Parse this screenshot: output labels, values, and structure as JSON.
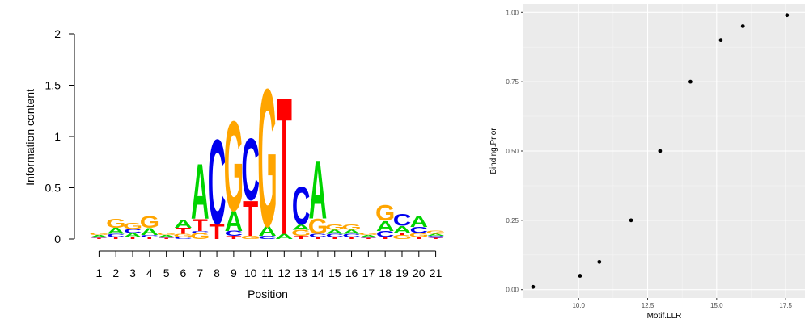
{
  "chart_data": [
    {
      "type": "sequence-logo",
      "xlabel": "Position",
      "ylabel": "Information content",
      "ylim": [
        0,
        2
      ],
      "yticks": [
        "0",
        "0.5",
        "1",
        "1.5",
        "2"
      ],
      "positions": [
        "1",
        "2",
        "3",
        "4",
        "5",
        "6",
        "7",
        "8",
        "9",
        "10",
        "11",
        "12",
        "13",
        "14",
        "15",
        "16",
        "17",
        "18",
        "19",
        "20",
        "21"
      ],
      "colors": {
        "A": "#00d400",
        "C": "#0000ee",
        "G": "#ffa500",
        "T": "#ff0000"
      },
      "stacks": [
        [
          [
            "T",
            0.01
          ],
          [
            "C",
            0.01
          ],
          [
            "A",
            0.02
          ],
          [
            "G",
            0.02
          ]
        ],
        [
          [
            "T",
            0.02
          ],
          [
            "C",
            0.03
          ],
          [
            "A",
            0.06
          ],
          [
            "G",
            0.09
          ]
        ],
        [
          [
            "T",
            0.02
          ],
          [
            "A",
            0.04
          ],
          [
            "C",
            0.04
          ],
          [
            "G",
            0.06
          ]
        ],
        [
          [
            "T",
            0.02
          ],
          [
            "C",
            0.02
          ],
          [
            "A",
            0.07
          ],
          [
            "G",
            0.12
          ]
        ],
        [
          [
            "T",
            0.01
          ],
          [
            "C",
            0.01
          ],
          [
            "A",
            0.02
          ],
          [
            "G",
            0.02
          ]
        ],
        [
          [
            "C",
            0.02
          ],
          [
            "G",
            0.03
          ],
          [
            "T",
            0.06
          ],
          [
            "A",
            0.08
          ]
        ],
        [
          [
            "G",
            0.06
          ],
          [
            "C",
            0.02
          ],
          [
            "T",
            0.12
          ],
          [
            "A",
            0.55
          ]
        ],
        [
          [
            "T",
            0.15
          ],
          [
            "C",
            0.85
          ]
        ],
        [
          [
            "T",
            0.03
          ],
          [
            "C",
            0.05
          ],
          [
            "A",
            0.2
          ],
          [
            "G",
            0.9
          ]
        ],
        [
          [
            "G",
            0.03
          ],
          [
            "T",
            0.35
          ],
          [
            "C",
            0.62
          ]
        ],
        [
          [
            "C",
            0.03
          ],
          [
            "A",
            0.1
          ],
          [
            "G",
            1.38
          ]
        ],
        [
          [
            "A",
            0.05
          ],
          [
            "T",
            1.38
          ]
        ],
        [
          [
            "T",
            0.03
          ],
          [
            "G",
            0.06
          ],
          [
            "A",
            0.05
          ],
          [
            "C",
            0.38
          ]
        ],
        [
          [
            "T",
            0.02
          ],
          [
            "C",
            0.03
          ],
          [
            "G",
            0.15
          ],
          [
            "A",
            0.58
          ]
        ],
        [
          [
            "T",
            0.02
          ],
          [
            "C",
            0.03
          ],
          [
            "A",
            0.04
          ],
          [
            "G",
            0.05
          ]
        ],
        [
          [
            "T",
            0.02
          ],
          [
            "C",
            0.03
          ],
          [
            "A",
            0.04
          ],
          [
            "G",
            0.05
          ]
        ],
        [
          [
            "T",
            0.01
          ],
          [
            "C",
            0.01
          ],
          [
            "A",
            0.02
          ],
          [
            "G",
            0.02
          ]
        ],
        [
          [
            "T",
            0.02
          ],
          [
            "C",
            0.06
          ],
          [
            "A",
            0.1
          ],
          [
            "G",
            0.16
          ]
        ],
        [
          [
            "G",
            0.04
          ],
          [
            "T",
            0.02
          ],
          [
            "A",
            0.07
          ],
          [
            "C",
            0.12
          ]
        ],
        [
          [
            "T",
            0.02
          ],
          [
            "G",
            0.04
          ],
          [
            "C",
            0.06
          ],
          [
            "A",
            0.11
          ]
        ],
        [
          [
            "T",
            0.01
          ],
          [
            "C",
            0.02
          ],
          [
            "A",
            0.02
          ],
          [
            "G",
            0.03
          ]
        ]
      ]
    },
    {
      "type": "scatter",
      "xlabel": "Motif.LLR",
      "ylabel": "Binding.Prior",
      "xlim": [
        8.0,
        18.2
      ],
      "ylim": [
        -0.03,
        1.03
      ],
      "xticks": [
        10.0,
        12.5,
        15.0,
        17.5
      ],
      "xtick_labels": [
        "10.0",
        "12.5",
        "15.0",
        "17.5"
      ],
      "yticks": [
        0.0,
        0.25,
        0.5,
        0.75,
        1.0
      ],
      "ytick_labels": [
        "0.00",
        "0.25",
        "0.50",
        "0.75",
        "1.00"
      ],
      "x": [
        8.35,
        10.05,
        10.75,
        11.9,
        12.95,
        14.05,
        15.15,
        15.95,
        17.55
      ],
      "y": [
        0.01,
        0.05,
        0.1,
        0.25,
        0.5,
        0.75,
        0.9,
        0.95,
        0.99
      ]
    }
  ]
}
